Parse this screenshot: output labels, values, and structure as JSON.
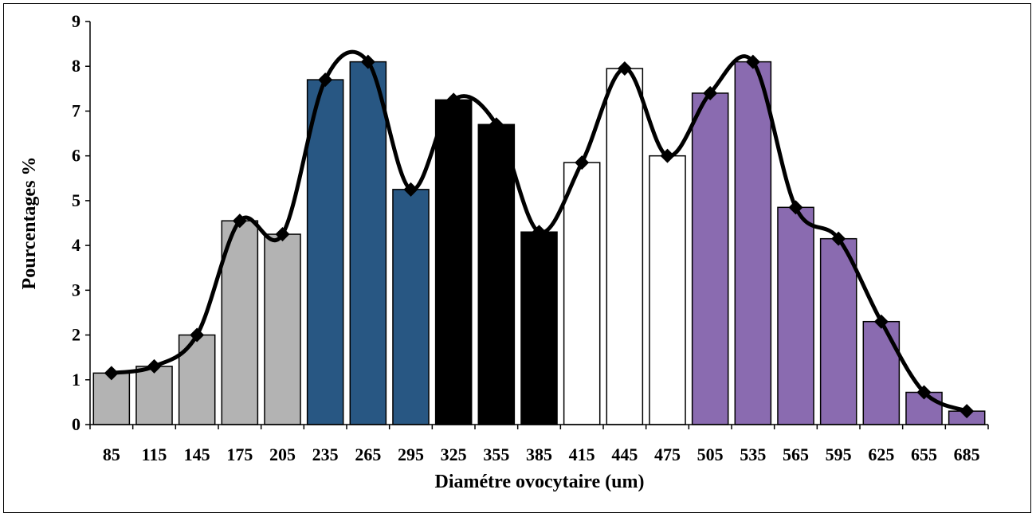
{
  "chart_data": {
    "type": "bar",
    "title": "",
    "xlabel": "Diamétre ovocytaire (um)",
    "ylabel": "Pourcentages %",
    "ylim": [
      0,
      9
    ],
    "yticks": [
      "0",
      "1",
      "2",
      "3",
      "4",
      "5",
      "6",
      "7",
      "8",
      "9"
    ],
    "grid": false,
    "categories": [
      "85",
      "115",
      "145",
      "175",
      "205",
      "235",
      "265",
      "295",
      "325",
      "355",
      "385",
      "415",
      "445",
      "475",
      "505",
      "535",
      "565",
      "595",
      "625",
      "655",
      "685"
    ],
    "values": [
      1.15,
      1.3,
      2.0,
      4.55,
      4.25,
      7.7,
      8.1,
      5.25,
      7.25,
      6.7,
      4.3,
      5.85,
      7.95,
      6.0,
      7.4,
      8.1,
      4.85,
      4.15,
      2.3,
      0.72,
      0.3
    ],
    "bar_colors": [
      "#b3b3b3",
      "#b3b3b3",
      "#b3b3b3",
      "#b3b3b3",
      "#b3b3b3",
      "#285783",
      "#285783",
      "#285783",
      "#000000",
      "#000000",
      "#000000",
      "#ffffff",
      "#ffffff",
      "#ffffff",
      "#8a6bb0",
      "#8a6bb0",
      "#8a6bb0",
      "#8a6bb0",
      "#8a6bb0",
      "#8a6bb0",
      "#8a6bb0"
    ],
    "line": {
      "style": "smooth",
      "color": "#000000",
      "marker": "diamond"
    }
  }
}
